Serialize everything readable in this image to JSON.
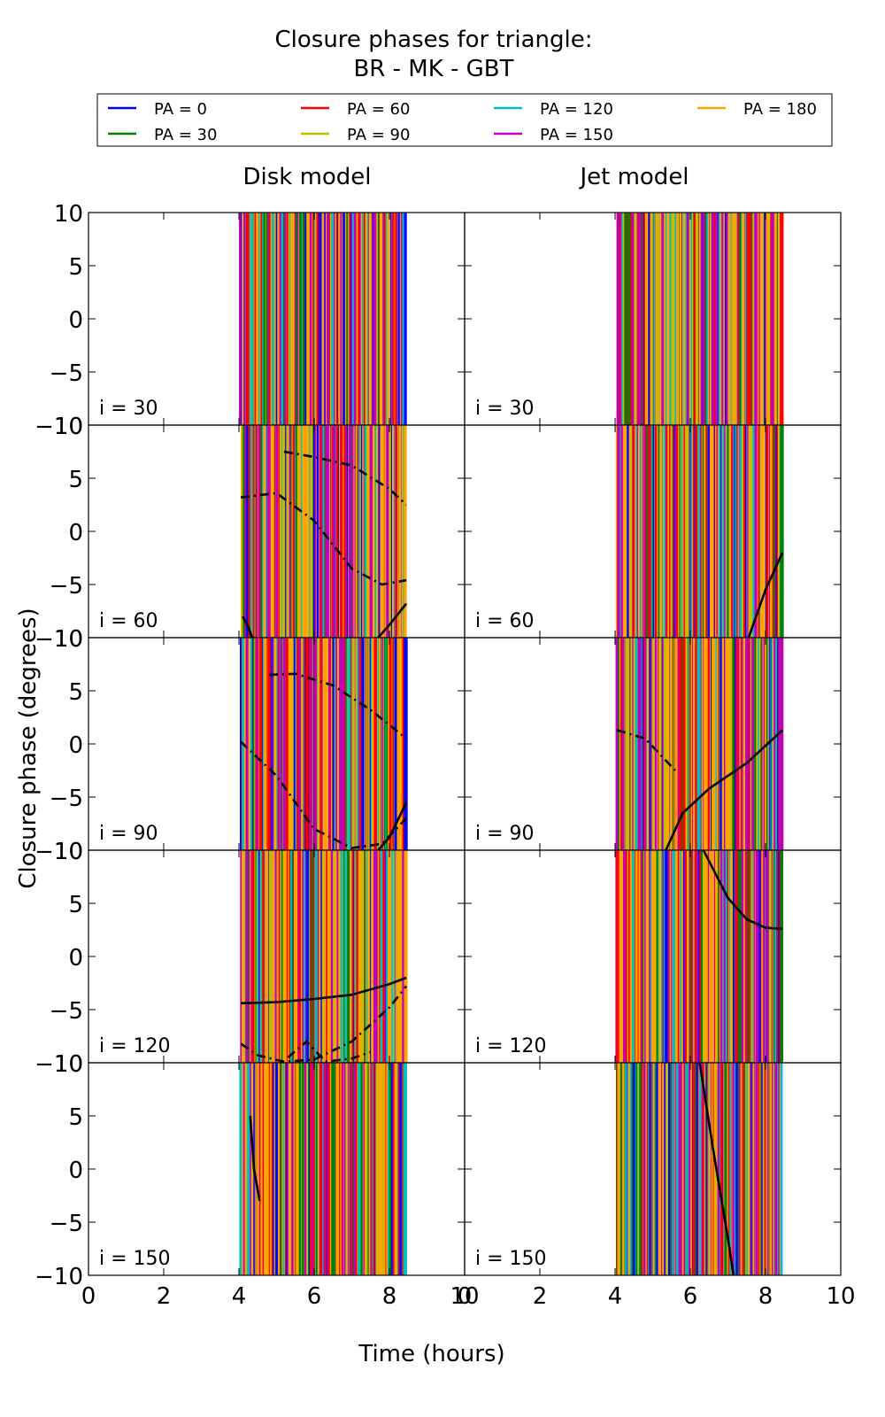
{
  "chart_data": {
    "type": "line",
    "title": "Closure phases for triangle:",
    "subtitle": "BR - MK - GBT",
    "xlabel": "Time (hours)",
    "ylabel": "Closure phase (degrees)",
    "xlim": [
      0,
      10
    ],
    "ylim": [
      -10,
      10
    ],
    "x_ticks": [
      "0",
      "2",
      "4",
      "6",
      "8",
      "10"
    ],
    "y_ticks": [
      "10",
      "5",
      "0",
      "−5",
      "−10"
    ],
    "time_range": [
      4.05,
      8.45
    ],
    "grid": false,
    "legend_position": "top",
    "columns": [
      "Disk model",
      "Jet model"
    ],
    "rows": [
      "i = 30",
      "i = 60",
      "i = 90",
      "i = 120",
      "i = 150"
    ],
    "series": [
      {
        "name": "PA = 0",
        "color": "#0000ff"
      },
      {
        "name": "PA = 30",
        "color": "#008000"
      },
      {
        "name": "PA = 60",
        "color": "#ff0000"
      },
      {
        "name": "PA = 90",
        "color": "#bfbf00"
      },
      {
        "name": "PA = 120",
        "color": "#00bfbf"
      },
      {
        "name": "PA = 150",
        "color": "#bf00bf"
      },
      {
        "name": "PA = 180",
        "color": "#ffa500"
      }
    ],
    "black_curves": {
      "disk": [
        [],
        [
          {
            "style": "solid",
            "x": [
              7.7,
              8.0,
              8.45
            ],
            "y": [
              -10,
              -8.8,
              -6.8
            ]
          },
          {
            "style": "dashdot",
            "x": [
              4.05,
              5.0,
              6.0,
              7.0,
              7.8,
              8.45
            ],
            "y": [
              3.2,
              3.6,
              1.0,
              -3.5,
              -5.0,
              -4.6
            ]
          },
          {
            "style": "dashdot",
            "x": [
              5.2,
              6.0,
              7.0,
              8.0,
              8.45
            ],
            "y": [
              7.5,
              7.0,
              6.2,
              4.0,
              2.5
            ]
          },
          {
            "style": "solid",
            "x": [
              4.1,
              4.25,
              4.35
            ],
            "y": [
              -8.0,
              -9.0,
              -10
            ]
          }
        ],
        [
          {
            "style": "solid",
            "x": [
              7.7,
              8.0,
              8.45
            ],
            "y": [
              -10,
              -8.8,
              -5.5
            ]
          },
          {
            "style": "dashdot",
            "x": [
              4.05,
              5.0,
              6.0,
              7.0,
              7.8,
              8.45
            ],
            "y": [
              0.2,
              -3.0,
              -8.0,
              -9.8,
              -9.4,
              -7.0
            ]
          },
          {
            "style": "dashdot",
            "x": [
              4.8,
              5.5,
              6.5,
              7.5,
              8.45
            ],
            "y": [
              6.5,
              6.6,
              5.5,
              3.2,
              0.5
            ]
          }
        ],
        [
          {
            "style": "solid",
            "x": [
              4.05,
              5.0,
              6.0,
              7.0,
              8.0,
              8.45
            ],
            "y": [
              -4.4,
              -4.3,
              -4.0,
              -3.6,
              -2.6,
              -2.0
            ]
          },
          {
            "style": "dashdot",
            "x": [
              4.05,
              4.5,
              5.2,
              6.0,
              7.0,
              8.0,
              8.45
            ],
            "y": [
              -8.2,
              -9.3,
              -9.9,
              -9.7,
              -8.0,
              -4.8,
              -2.8
            ]
          },
          {
            "style": "dashdot",
            "x": [
              5.3,
              5.8,
              6.3,
              7.0,
              7.5
            ],
            "y": [
              -9.5,
              -8.0,
              -9.9,
              -9.6,
              -9.0
            ]
          }
        ],
        [
          {
            "style": "solid",
            "x": [
              4.3,
              4.4,
              4.55
            ],
            "y": [
              5.0,
              0.0,
              -3.0
            ]
          }
        ]
      ],
      "jet": [
        [],
        [
          {
            "style": "solid",
            "x": [
              7.55,
              8.0,
              8.45
            ],
            "y": [
              -10,
              -5.5,
              -2.0
            ]
          }
        ],
        [
          {
            "style": "solid",
            "x": [
              5.35,
              5.8,
              6.5,
              7.5,
              8.45
            ],
            "y": [
              -10,
              -6.5,
              -4.2,
              -1.8,
              1.3
            ]
          },
          {
            "style": "dashdot",
            "x": [
              4.05,
              4.8,
              5.6
            ],
            "y": [
              1.3,
              0.5,
              -2.5
            ]
          }
        ],
        [
          {
            "style": "solid",
            "x": [
              6.35,
              7.0,
              7.5,
              8.0,
              8.45
            ],
            "y": [
              10,
              5.5,
              3.5,
              2.7,
              2.6
            ]
          }
        ],
        [
          {
            "style": "solid",
            "x": [
              6.25,
              6.6,
              7.0,
              7.15
            ],
            "y": [
              10,
              2.0,
              -6.5,
              -10
            ]
          }
        ]
      ]
    }
  }
}
